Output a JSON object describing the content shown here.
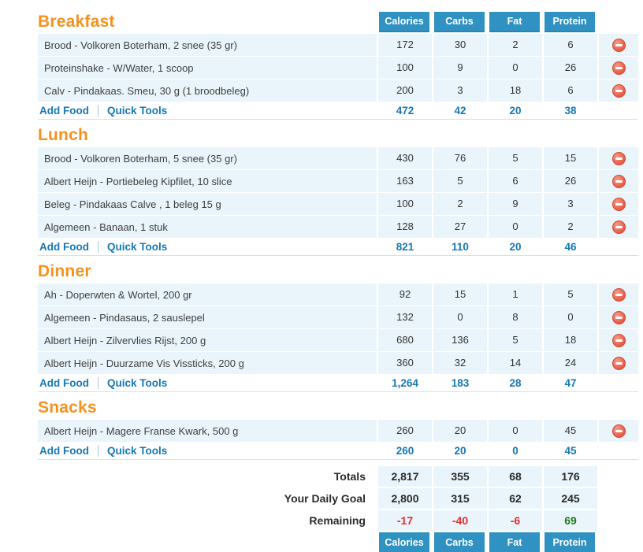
{
  "colors": {
    "header_blue": "#3092c3",
    "row_bg": "#e9f5fb",
    "section_orange": "#f5921e",
    "link_blue": "#1478b5",
    "remaining_negative_red": "#e82c2c",
    "remaining_positive_green": "#1e7a1e",
    "delete_icon_red": "#e85b44",
    "divider": "#cfe3ee"
  },
  "columns": [
    "Calories",
    "Carbs",
    "Fat",
    "Protein"
  ],
  "links": {
    "add_food": "Add Food",
    "quick_tools": "Quick Tools"
  },
  "sections": [
    {
      "id": "breakfast",
      "title": "Breakfast",
      "show_column_headers": true,
      "rows": [
        {
          "name": "Brood - Volkoren Boterham, 2 snee (35 gr)",
          "values": [
            "172",
            "30",
            "2",
            "6"
          ]
        },
        {
          "name": "Proteinshake - W/Water, 1 scoop",
          "values": [
            "100",
            "9",
            "0",
            "26"
          ]
        },
        {
          "name": "Calv - Pindakaas. Smeu, 30 g (1 broodbeleg)",
          "values": [
            "200",
            "3",
            "18",
            "6"
          ]
        }
      ],
      "totals": [
        "472",
        "42",
        "20",
        "38"
      ]
    },
    {
      "id": "lunch",
      "title": "Lunch",
      "show_column_headers": false,
      "rows": [
        {
          "name": "Brood - Volkoren Boterham, 5 snee (35 gr)",
          "values": [
            "430",
            "76",
            "5",
            "15"
          ]
        },
        {
          "name": "Albert Heijn - Portiebeleg Kipfilet, 10 slice",
          "values": [
            "163",
            "5",
            "6",
            "26"
          ]
        },
        {
          "name": "Beleg - Pindakaas Calve , 1 beleg 15 g",
          "values": [
            "100",
            "2",
            "9",
            "3"
          ]
        },
        {
          "name": "Algemeen - Banaan, 1 stuk",
          "values": [
            "128",
            "27",
            "0",
            "2"
          ]
        }
      ],
      "totals": [
        "821",
        "110",
        "20",
        "46"
      ]
    },
    {
      "id": "dinner",
      "title": "Dinner",
      "show_column_headers": false,
      "rows": [
        {
          "name": "Ah - Doperwten & Wortel, 200 gr",
          "values": [
            "92",
            "15",
            "1",
            "5"
          ]
        },
        {
          "name": "Algemeen - Pindasaus, 2 sauslepel",
          "values": [
            "132",
            "0",
            "8",
            "0"
          ]
        },
        {
          "name": "Albert Heijn - Zilvervlies Rijst, 200 g",
          "values": [
            "680",
            "136",
            "5",
            "18"
          ]
        },
        {
          "name": "Albert Heijn - Duurzame Vis Vissticks, 200 g",
          "values": [
            "360",
            "32",
            "14",
            "24"
          ]
        }
      ],
      "totals": [
        "1,264",
        "183",
        "28",
        "47"
      ]
    },
    {
      "id": "snacks",
      "title": "Snacks",
      "show_column_headers": false,
      "rows": [
        {
          "name": "Albert Heijn - Magere Franse Kwark, 500 g",
          "values": [
            "260",
            "20",
            "0",
            "45"
          ]
        }
      ],
      "totals": [
        "260",
        "20",
        "0",
        "45"
      ]
    }
  ],
  "summary": {
    "rows": [
      {
        "label": "Totals",
        "values": [
          "2,817",
          "355",
          "68",
          "176"
        ],
        "value_colors": [
          "dark",
          "dark",
          "dark",
          "dark"
        ]
      },
      {
        "label": "Your Daily Goal",
        "values": [
          "2,800",
          "315",
          "62",
          "245"
        ],
        "value_colors": [
          "dark",
          "dark",
          "dark",
          "dark"
        ]
      },
      {
        "label": "Remaining",
        "values": [
          "-17",
          "-40",
          "-6",
          "69"
        ],
        "value_colors": [
          "red",
          "red",
          "red",
          "green"
        ]
      }
    ],
    "footer_columns": [
      "Calories",
      "Carbs",
      "Fat",
      "Protein"
    ]
  }
}
